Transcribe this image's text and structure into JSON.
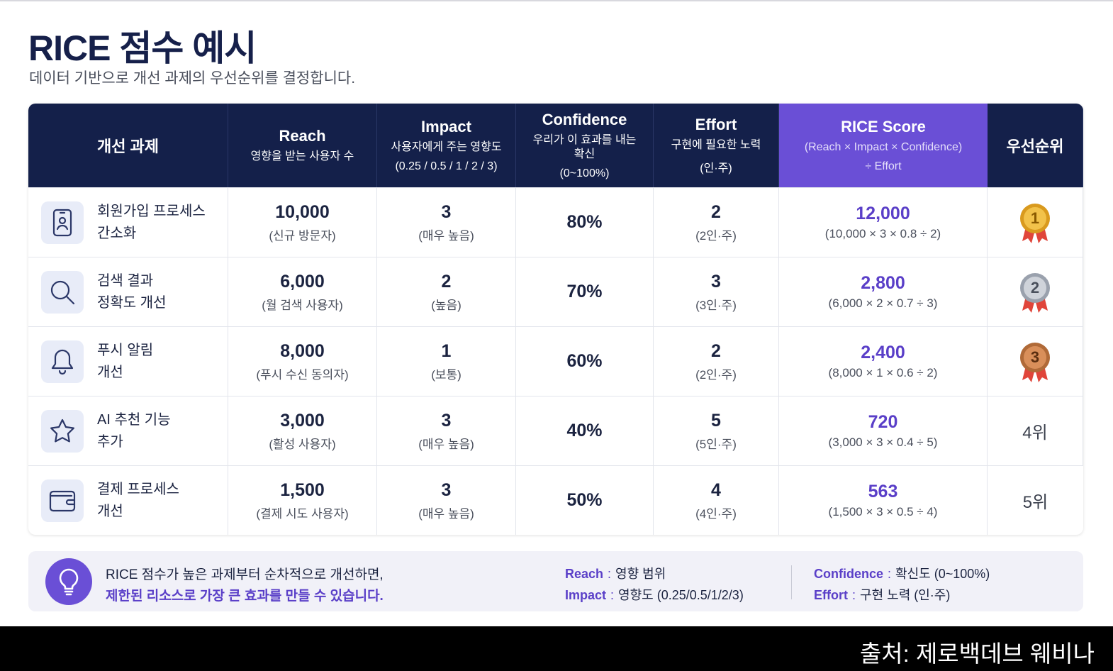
{
  "header": {
    "title": "RICE 점수 예시",
    "subtitle": "데이터 기반으로 개선 과제의 우선순위를 결정합니다."
  },
  "table": {
    "columns": [
      {
        "title": "개선 과제"
      },
      {
        "title": "Reach",
        "desc": "영향을 받는 사용자 수"
      },
      {
        "title": "Impact",
        "desc": "사용자에게 주는 영향도",
        "note": "(0.25 / 0.5 / 1 / 2 / 3)"
      },
      {
        "title": "Confidence",
        "desc": "우리가 이 효과를 내는 확신",
        "note": "(0~100%)"
      },
      {
        "title": "Effort",
        "desc": "구현에 필요한 노력",
        "note": "(인·주)"
      },
      {
        "title": "RICE Score",
        "desc": "(Reach × Impact × Confidence)",
        "note": "÷ Effort"
      },
      {
        "title": "우선순위"
      }
    ],
    "rows": [
      {
        "task": [
          "회원가입 프로세스",
          "간소화"
        ],
        "reach": "10,000",
        "reach_note": "(신규 방문자)",
        "impact": "3",
        "impact_note": "(매우 높음)",
        "confidence": "80%",
        "effort": "2",
        "effort_note": "(2인·주)",
        "score": "12,000",
        "formula": "(10,000 × 3 × 0.8 ÷ 2)",
        "rank": "1"
      },
      {
        "task": [
          "검색 결과",
          "정확도 개선"
        ],
        "reach": "6,000",
        "reach_note": "(월 검색 사용자)",
        "impact": "2",
        "impact_note": "(높음)",
        "confidence": "70%",
        "effort": "3",
        "effort_note": "(3인·주)",
        "score": "2,800",
        "formula": "(6,000 × 2 × 0.7 ÷ 3)",
        "rank": "2"
      },
      {
        "task": [
          "푸시 알림",
          "개선"
        ],
        "reach": "8,000",
        "reach_note": "(푸시 수신 동의자)",
        "impact": "1",
        "impact_note": "(보통)",
        "confidence": "60%",
        "effort": "2",
        "effort_note": "(2인·주)",
        "score": "2,400",
        "formula": "(8,000 × 1 × 0.6 ÷ 2)",
        "rank": "3"
      },
      {
        "task": [
          "AI 추천 기능",
          "추가"
        ],
        "reach": "3,000",
        "reach_note": "(활성 사용자)",
        "impact": "3",
        "impact_note": "(매우 높음)",
        "confidence": "40%",
        "effort": "5",
        "effort_note": "(5인·주)",
        "score": "720",
        "formula": "(3,000 × 3 × 0.4 ÷ 5)",
        "rank": "4위"
      },
      {
        "task": [
          "결제 프로세스",
          "개선"
        ],
        "reach": "1,500",
        "reach_note": "(결제 시도 사용자)",
        "impact": "3",
        "impact_note": "(매우 높음)",
        "confidence": "50%",
        "effort": "4",
        "effort_note": "(4인·주)",
        "score": "563",
        "formula": "(1,500 × 3 × 0.5 ÷ 4)",
        "rank": "5위"
      }
    ]
  },
  "footer": {
    "message": [
      "RICE 점수가 높은 과제부터 순차적으로 개선하면,",
      "제한된 리소스로 가장 큰 효과를 만들 수 있습니다."
    ],
    "legend": [
      {
        "term": "Reach",
        "separator": ":",
        "desc": "영향 범위"
      },
      {
        "term": "Impact",
        "separator": ":",
        "desc": "영향도 (0.25/0.5/1/2/3)"
      },
      {
        "term": "Confidence",
        "separator": ":",
        "desc": "확신도 (0~100%)"
      },
      {
        "term": "Effort",
        "separator": ":",
        "desc": "구현 노력 (인·주)"
      }
    ]
  },
  "source": "출처: 제로백데브 웨비나"
}
